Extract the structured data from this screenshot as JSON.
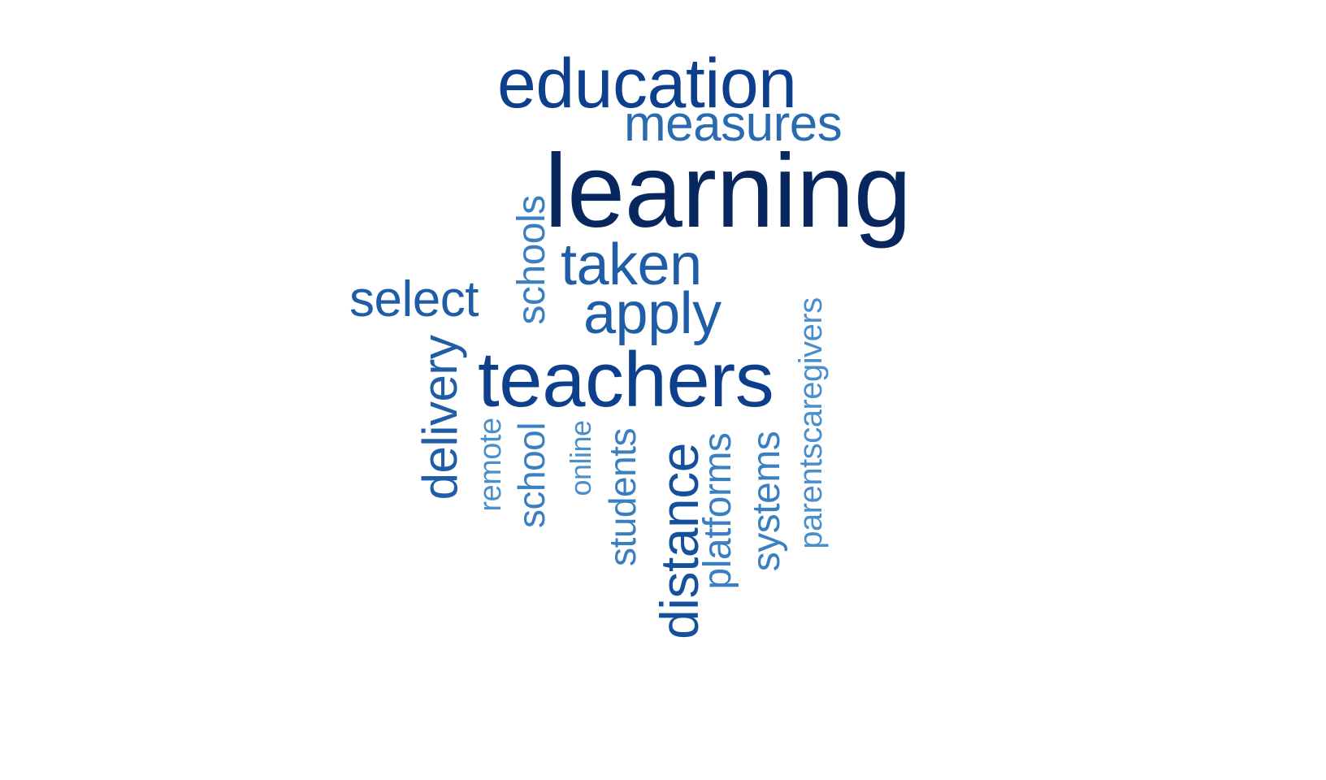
{
  "wordcloud": {
    "words": [
      {
        "text": "education",
        "color": "#0e3f8c"
      },
      {
        "text": "measures",
        "color": "#2a6bb0"
      },
      {
        "text": "learning",
        "color": "#08275f"
      },
      {
        "text": "taken",
        "color": "#1f5ea6"
      },
      {
        "text": "apply",
        "color": "#1f5ea6"
      },
      {
        "text": "select",
        "color": "#1f5ea6"
      },
      {
        "text": "schools",
        "color": "#3a7fc1"
      },
      {
        "text": "teachers",
        "color": "#0e3f8c"
      },
      {
        "text": "delivery",
        "color": "#1f5ea6"
      },
      {
        "text": "remote",
        "color": "#4a8fcc"
      },
      {
        "text": "school",
        "color": "#3a7fc1"
      },
      {
        "text": "online",
        "color": "#4a8fcc"
      },
      {
        "text": "students",
        "color": "#3a7fc1"
      },
      {
        "text": "distance",
        "color": "#15509c"
      },
      {
        "text": "platforms",
        "color": "#3a7fc1"
      },
      {
        "text": "systems",
        "color": "#3a7fc1"
      },
      {
        "text": "parentscaregivers",
        "color": "#4a8fcc"
      }
    ]
  }
}
